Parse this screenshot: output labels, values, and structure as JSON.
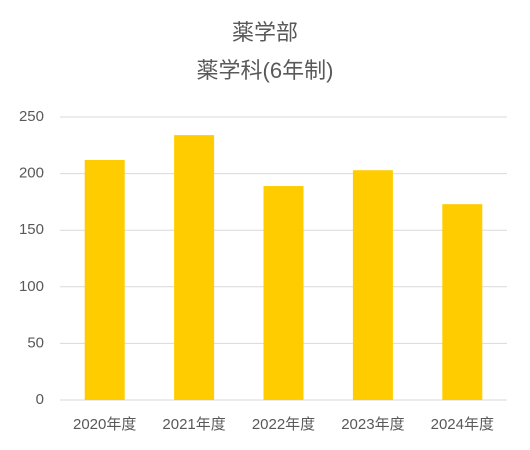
{
  "chart_data": {
    "type": "bar",
    "title": "薬学部",
    "subtitle": "薬学科(6年制)",
    "categories": [
      "2020年度",
      "2021年度",
      "2022年度",
      "2023年度",
      "2024年度"
    ],
    "values": [
      212,
      234,
      189,
      203,
      173
    ],
    "color": "#ffcc00",
    "ylim": [
      0,
      250
    ],
    "yticks": [
      0,
      50,
      100,
      150,
      200,
      250
    ],
    "grid": true
  }
}
